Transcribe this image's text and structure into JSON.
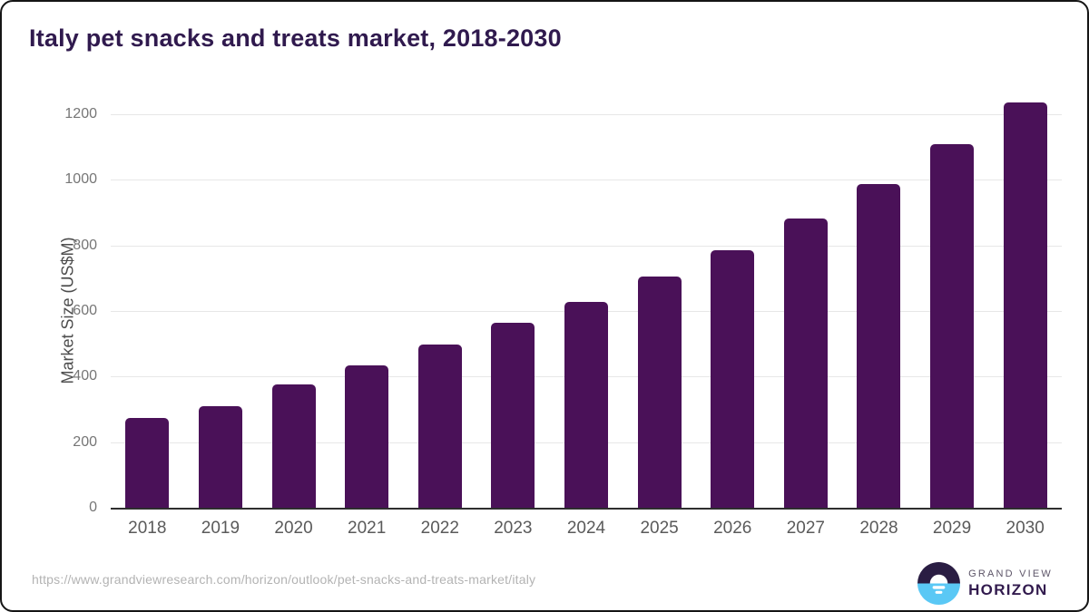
{
  "page": {
    "title": "Italy pet snacks and treats market, 2018-2030",
    "source_url": "https://www.grandviewresearch.com/horizon/outlook/pet-snacks-and-treats-market/italy"
  },
  "logo": {
    "brand_top": "GRAND VIEW",
    "brand_bottom": "HORIZON",
    "icon": "horizon-sun-circle"
  },
  "colors": {
    "bar": "#4a1158",
    "title": "#301a4e",
    "gridline": "#e7e7e7",
    "axis_line": "#2e2e2e",
    "y_tick_label": "#767676",
    "x_label": "#5a5a5a",
    "axis_title": "#4d4d4d",
    "footer_url": "#b3b3b3",
    "logo_dark": "#2a1d43",
    "logo_blue": "#5ac8f5"
  },
  "chart_data": {
    "type": "bar",
    "title": "Italy pet snacks and treats market, 2018-2030",
    "categories": [
      "2018",
      "2019",
      "2020",
      "2021",
      "2022",
      "2023",
      "2024",
      "2025",
      "2026",
      "2027",
      "2028",
      "2029",
      "2030"
    ],
    "values": [
      275,
      310,
      377,
      433,
      497,
      563,
      629,
      704,
      786,
      883,
      988,
      1110,
      1237
    ],
    "xlabel": "",
    "ylabel": "Market Size (US$M)",
    "ylim": [
      0,
      1200
    ],
    "yticks": [
      0,
      200,
      400,
      600,
      800,
      1000,
      1200
    ],
    "grid": "horizontal",
    "legend": "none",
    "bar_color": "#4a1158"
  }
}
